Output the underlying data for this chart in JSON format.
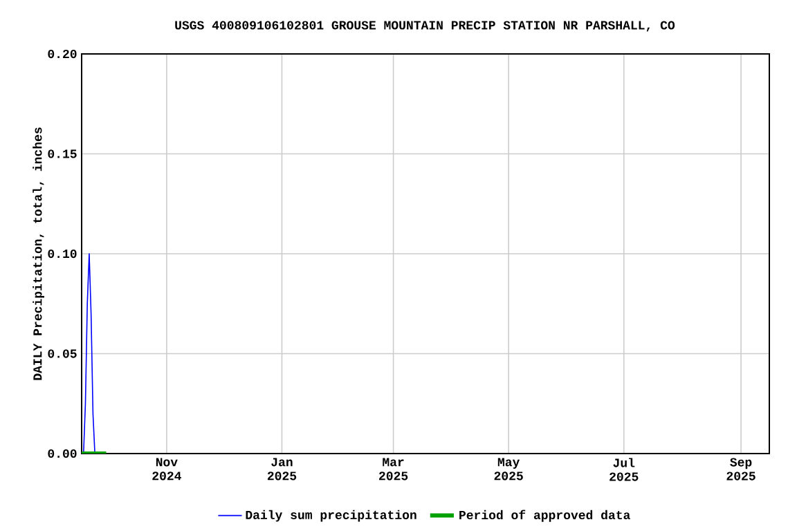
{
  "chart_data": {
    "type": "line",
    "title": "USGS 400809106102801 GROUSE MOUNTAIN PRECIP STATION NR PARSHALL, CO",
    "ylabel": "DAILY Precipitation, total, inches",
    "series": [
      {
        "name": "Daily sum precipitation",
        "color": "#0000ff",
        "x": [
          "2024-09-18",
          "2024-09-19",
          "2024-09-20",
          "2024-09-21",
          "2024-09-22",
          "2024-09-23",
          "2024-09-24"
        ],
        "values": [
          0,
          0.025,
          0.075,
          0.1,
          0.07,
          0.02,
          0
        ]
      },
      {
        "name": "Period of approved data",
        "color": "#00a000",
        "x": [
          "2024-09-17",
          "2024-09-30"
        ],
        "values": [
          0,
          0
        ]
      }
    ],
    "xlim": [
      "2024-09-17",
      "2025-09-16"
    ],
    "ylim": [
      0,
      0.2
    ],
    "xticks": [
      {
        "value": "2024-11-01",
        "label": "Nov 2024"
      },
      {
        "value": "2025-01-01",
        "label": "Jan 2025"
      },
      {
        "value": "2025-03-01",
        "label": "Mar 2025"
      },
      {
        "value": "2025-05-01",
        "label": "May 2025"
      },
      {
        "value": "2025-07-01",
        "label": "Jul 2025"
      },
      {
        "value": "2025-09-01",
        "label": "Sep 2025"
      }
    ],
    "yticks": [
      {
        "value": 0,
        "label": "0.00"
      },
      {
        "value": 0.05,
        "label": "0.05"
      },
      {
        "value": 0.1,
        "label": "0.10"
      },
      {
        "value": 0.15,
        "label": "0.15"
      },
      {
        "value": 0.2,
        "label": "0.20"
      }
    ],
    "grid": true,
    "legend": "bottom"
  }
}
